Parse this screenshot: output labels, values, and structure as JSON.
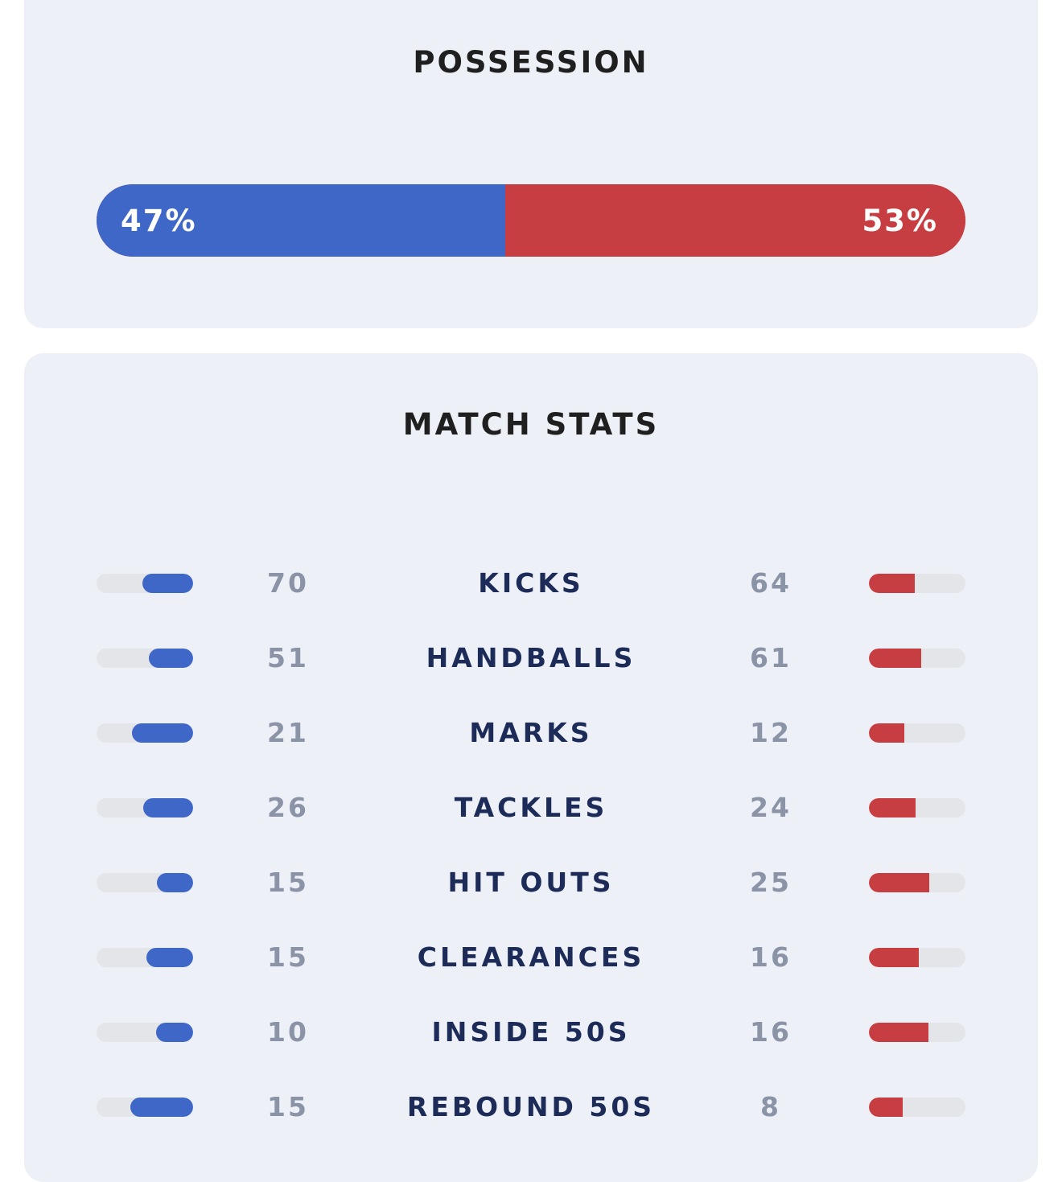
{
  "possession": {
    "title": "POSSESSION",
    "home_pct": 47,
    "away_pct": 53,
    "home_label": "47%",
    "away_label": "53%",
    "home_color": "#3f67c7",
    "away_color": "#c63e42"
  },
  "match_stats": {
    "title": "MATCH STATS",
    "rows": [
      {
        "name": "KICKS",
        "home": "70",
        "away": "64"
      },
      {
        "name": "HANDBALLS",
        "home": "51",
        "away": "61"
      },
      {
        "name": "MARKS",
        "home": "21",
        "away": "12"
      },
      {
        "name": "TACKLES",
        "home": "26",
        "away": "24"
      },
      {
        "name": "HIT OUTS",
        "home": "15",
        "away": "25"
      },
      {
        "name": "CLEARANCES",
        "home": "15",
        "away": "16"
      },
      {
        "name": "INSIDE 50S",
        "home": "10",
        "away": "16"
      },
      {
        "name": "REBOUND 50S",
        "home": "15",
        "away": "8"
      }
    ]
  }
}
